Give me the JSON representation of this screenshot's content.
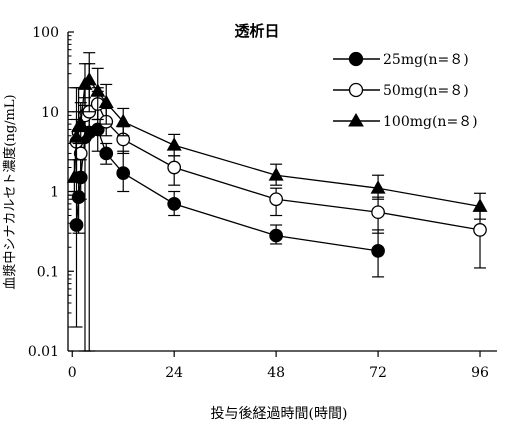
{
  "chart_data": {
    "type": "line",
    "title": "透析日",
    "xlabel": "投与後経過時間(時間)",
    "ylabel": "血漿中シナカルセト濃度(ng/mL)",
    "x_ticks": [
      0,
      24,
      48,
      72,
      96
    ],
    "x_tick_labels": [
      "0",
      "24",
      "48",
      "72",
      "96"
    ],
    "xlim": [
      -1,
      100
    ],
    "y_scale": "log",
    "ylim": [
      0.01,
      100
    ],
    "y_ticks": [
      0.01,
      0.1,
      1,
      10,
      100
    ],
    "y_tick_labels": [
      "0.01",
      "0.1",
      "1",
      "10",
      "100"
    ],
    "grid": false,
    "legend_position": "top-right",
    "colors": {
      "axis": "#000000",
      "series": "#000000",
      "background": "#ffffff"
    },
    "series": [
      {
        "name": "25mg(n=８)",
        "marker": "filled-circle",
        "x": [
          1,
          1.5,
          2,
          3,
          4,
          6,
          8,
          12,
          24,
          48,
          72
        ],
        "y": [
          0.38,
          0.85,
          1.5,
          4.8,
          5.5,
          6.0,
          3.0,
          1.7,
          0.7,
          0.28,
          0.18
        ],
        "err_low": [
          0.02,
          0.3,
          0.8,
          0.01,
          0.01,
          3.2,
          2.2,
          1.0,
          0.5,
          0.22,
          0.085
        ],
        "err_high": [
          0.8,
          1.6,
          2.5,
          20,
          40,
          20,
          4.0,
          3.2,
          1.0,
          0.38,
          0.33
        ]
      },
      {
        "name": "50mg(n=８)",
        "marker": "open-circle",
        "x": [
          1,
          1.5,
          2,
          3,
          4,
          6,
          8,
          12,
          24,
          48,
          72,
          96
        ],
        "y": [
          4.2,
          5.5,
          3.0,
          9.0,
          10.0,
          12.5,
          7.5,
          4.5,
          2.0,
          0.8,
          0.55,
          0.33
        ],
        "err_low": [
          1.5,
          2.5,
          1.5,
          4.5,
          6.0,
          8.0,
          5.0,
          3.0,
          1.2,
          0.5,
          0.3,
          0.11
        ],
        "err_high": [
          8.0,
          10.0,
          6.0,
          15.0,
          22.0,
          18.0,
          11.0,
          6.5,
          2.8,
          1.1,
          0.85,
          0.58
        ]
      },
      {
        "name": "100mg(n=８)",
        "marker": "filled-triangle",
        "x": [
          0.5,
          1,
          1.5,
          2,
          3,
          4,
          6,
          8,
          12,
          24,
          48,
          72,
          96
        ],
        "y": [
          1.5,
          4.8,
          6.5,
          7.0,
          22.0,
          25.0,
          18.0,
          13.0,
          7.5,
          3.8,
          1.6,
          1.1,
          0.65
        ],
        "err_low": [
          0.9,
          1.0,
          4.0,
          4.0,
          12.0,
          10.0,
          8.0,
          7.0,
          5.0,
          2.8,
          1.2,
          0.8,
          0.45
        ],
        "err_high": [
          2.5,
          20.0,
          20.0,
          13.0,
          40.0,
          55.0,
          35.0,
          22.0,
          11.0,
          5.2,
          2.2,
          1.6,
          0.95
        ]
      }
    ]
  }
}
